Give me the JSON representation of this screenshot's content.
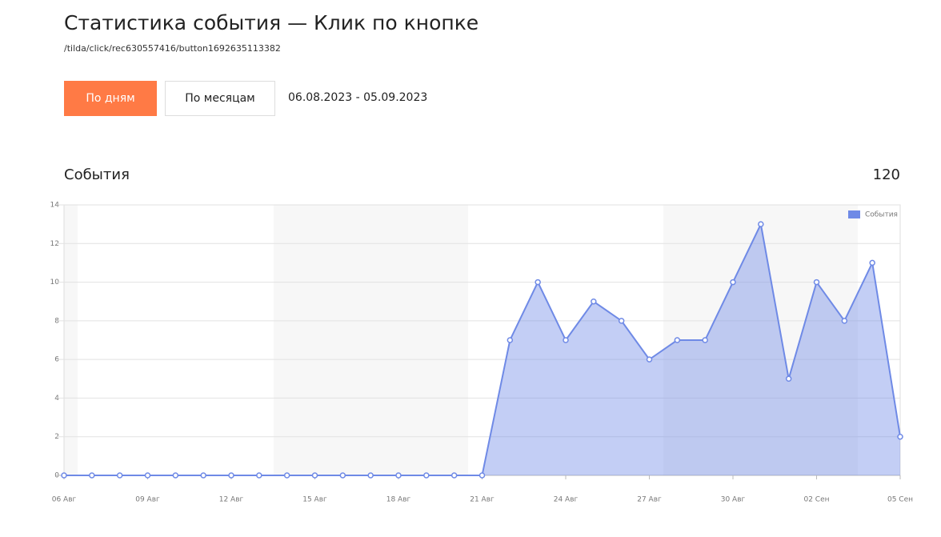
{
  "header": {
    "title": "Статистика события — Клик по кнопке",
    "path": "/tilda/click/rec630557416/button1692635113382"
  },
  "controls": {
    "by_days": "По дням",
    "by_months": "По месяцам",
    "date_range": "06.08.2023 - 05.09.2023"
  },
  "total": 120,
  "chart_data": {
    "type": "area",
    "title": "События",
    "categories": [
      "06 Авг",
      null,
      null,
      "09 Авг",
      null,
      null,
      "12 Авг",
      null,
      null,
      "15 Авг",
      null,
      null,
      "18 Авг",
      null,
      null,
      "21 Авг",
      null,
      null,
      "24 Авг",
      null,
      null,
      "27 Авг",
      null,
      null,
      "30 Авг",
      null,
      null,
      "02 Сен",
      null,
      null,
      "05 Сен"
    ],
    "series": [
      {
        "name": "События",
        "color": "#6f8ae6",
        "values": [
          0,
          0,
          0,
          0,
          0,
          0,
          0,
          0,
          0,
          0,
          0,
          0,
          0,
          0,
          0,
          0,
          7,
          10,
          7,
          9,
          8,
          6,
          7,
          7,
          10,
          13,
          5,
          10,
          8,
          11,
          2
        ]
      }
    ],
    "ylim": [
      0,
      14
    ],
    "yticks": [
      0,
      2,
      4,
      6,
      8,
      10,
      12,
      14
    ],
    "grid": true,
    "legend": "top-right"
  }
}
